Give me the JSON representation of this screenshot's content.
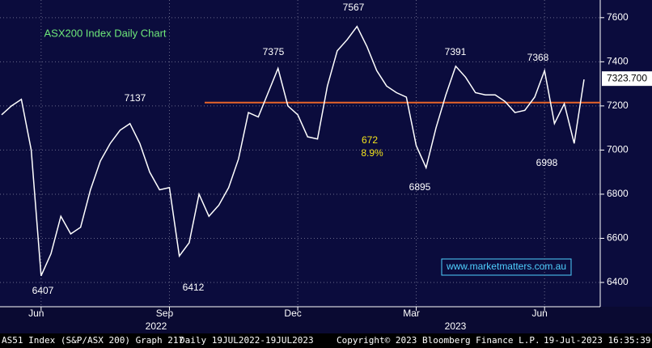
{
  "chart_data": {
    "type": "line",
    "title": "ASX200 Index Daily Chart",
    "categories": [
      null,
      null,
      null,
      null,
      "Jun",
      null,
      null,
      null,
      null,
      null,
      null,
      null,
      null,
      null,
      null,
      null,
      null,
      "Sep",
      null,
      null,
      null,
      null,
      null,
      null,
      null,
      null,
      null,
      null,
      null,
      null,
      "Dec",
      null,
      null,
      null,
      null,
      null,
      null,
      null,
      null,
      null,
      null,
      null,
      "Mar",
      null,
      null,
      null,
      null,
      null,
      null,
      null,
      null,
      null,
      null,
      null,
      null,
      "Jun",
      null,
      null,
      null,
      null
    ],
    "years": [
      "2022",
      "2023"
    ],
    "series": [
      {
        "name": "AS51 Index",
        "color": "#ffffff",
        "values": [
          7160,
          7200,
          7230,
          7000,
          6430,
          6530,
          6700,
          6620,
          6650,
          6820,
          6950,
          7030,
          7090,
          7120,
          7030,
          6900,
          6820,
          6830,
          6520,
          6580,
          6800,
          6700,
          6750,
          6830,
          6960,
          7170,
          7150,
          7260,
          7370,
          7200,
          7160,
          7060,
          7050,
          7290,
          7450,
          7500,
          7560,
          7470,
          7360,
          7290,
          7260,
          7240,
          7020,
          6920,
          7100,
          7250,
          7380,
          7330,
          7260,
          7250,
          7250,
          7220,
          7170,
          7180,
          7240,
          7360,
          7120,
          7210,
          7030,
          7320
        ]
      }
    ],
    "last_price": {
      "value": 7323.7,
      "label": "7323.700"
    },
    "reference_line": {
      "value": 7215,
      "color": "#e8642a"
    },
    "annotations": [
      "7567",
      "7375",
      "7391",
      "7368",
      "7137",
      "6407",
      "6412",
      "6895",
      "6998",
      "672",
      "8.9%"
    ],
    "watermark": "www.marketmatters.com.au",
    "ylim": [
      6290,
      7680
    ],
    "yticks": [
      6400,
      6600,
      6800,
      7000,
      7200,
      7400,
      7600
    ],
    "grid": true,
    "footer": [
      "AS51 Index (S&P/ASX 200) Graph 217",
      "Daily 19JUL2022-19JUL2023",
      "Copyright© 2023 Bloomberg Finance L.P.",
      "19-Jul-2023 16:35:39"
    ]
  }
}
